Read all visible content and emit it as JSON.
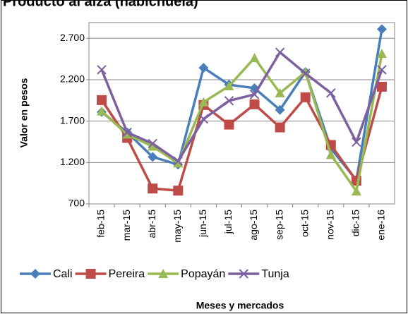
{
  "chart_data": {
    "type": "line",
    "title": "Producto al alza (habichuela)",
    "x_label": "Meses  y mercados",
    "y_label": "Valor en pesos",
    "categories": [
      "feb-15",
      "mar-15",
      "abr-15",
      "may-15",
      "jun-15",
      "jul-15",
      "ago-15",
      "sep-15",
      "oct-15",
      "nov-15",
      "dic-15",
      "ene-16"
    ],
    "series": [
      {
        "name": "Cali",
        "color": "#4a7ebb",
        "marker": "diamond",
        "values": [
          1810,
          1564,
          1268,
          1175,
          2344,
          2140,
          2098,
          1836,
          2293,
          1369,
          988,
          2810
        ]
      },
      {
        "name": "Pereira",
        "color": "#be4b48",
        "marker": "square",
        "values": [
          1954,
          1497,
          886,
          861,
          1895,
          1658,
          1903,
          1624,
          1988,
          1412,
          980,
          2115
        ]
      },
      {
        "name": "Popayán",
        "color": "#98b954",
        "marker": "triangle",
        "values": [
          1820,
          1540,
          1395,
          1192,
          1929,
          2123,
          2463,
          2039,
          2293,
          1293,
          853,
          2514
        ]
      },
      {
        "name": "Tunja",
        "color": "#7d60a0",
        "marker": "x",
        "values": [
          2320,
          1564,
          1429,
          1217,
          1725,
          1946,
          2022,
          2531,
          2276,
          2039,
          1446,
          2320
        ]
      }
    ],
    "ylim": [
      700,
      2890
    ],
    "yticks": [
      700,
      {
        "value": 1200,
        "label": "1.200"
      },
      {
        "value": 1700,
        "label": "1.700"
      },
      {
        "value": 2200,
        "label": "2.200"
      },
      {
        "value": 2700,
        "label": "2.700"
      }
    ],
    "grid": true,
    "legend": "bottom"
  }
}
